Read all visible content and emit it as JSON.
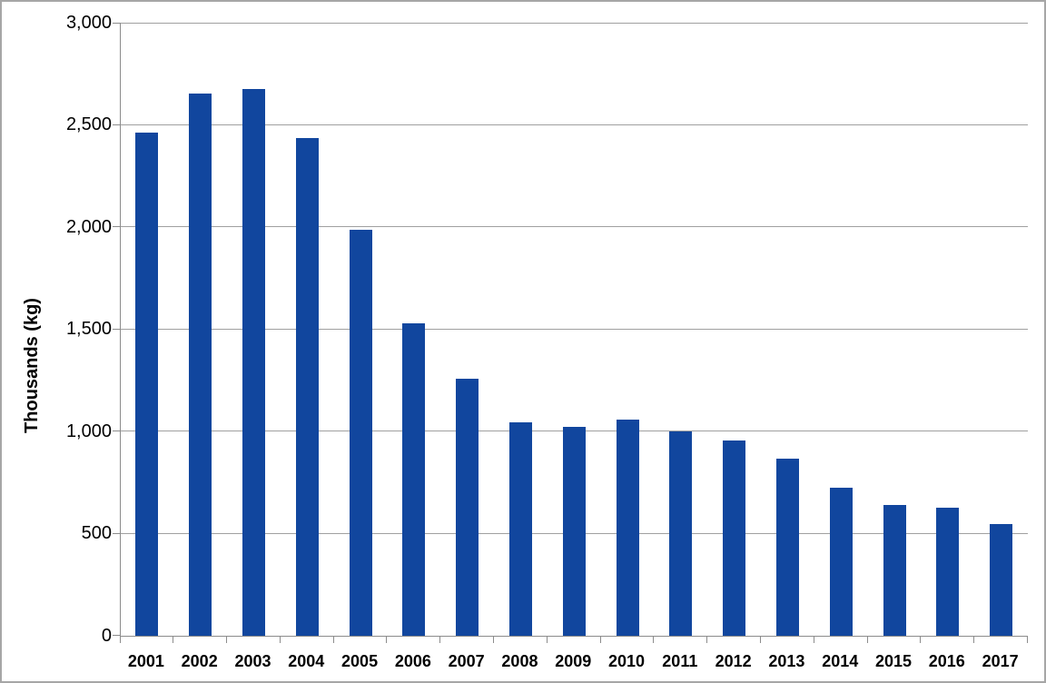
{
  "window": {
    "background_color": "#ffffff",
    "frame_border_color": "#a6a6a6"
  },
  "chart_data": {
    "type": "bar",
    "title": "",
    "xlabel": "",
    "ylabel": "Thousands (kg)",
    "categories": [
      "2001",
      "2002",
      "2003",
      "2004",
      "2005",
      "2006",
      "2007",
      "2008",
      "2009",
      "2010",
      "2011",
      "2012",
      "2013",
      "2014",
      "2015",
      "2016",
      "2017"
    ],
    "values": [
      2460,
      2655,
      2675,
      2435,
      1985,
      1530,
      1258,
      1045,
      1023,
      1056,
      1000,
      956,
      863,
      723,
      640,
      624,
      547
    ],
    "ylim": [
      0,
      3000
    ],
    "ytick_interval": 500,
    "yticks": {
      "values": [
        0,
        500,
        1000,
        1500,
        2000,
        2500,
        3000
      ],
      "labels": [
        "0",
        "500",
        "1,000",
        "1,500",
        "2,000",
        "2,500",
        "3,000"
      ]
    },
    "grid": true,
    "legend": "none",
    "colors": {
      "bar": "#11469E",
      "gridline": "#a0a0a0",
      "axis": "#8c8c8c",
      "text": "#000000"
    }
  }
}
